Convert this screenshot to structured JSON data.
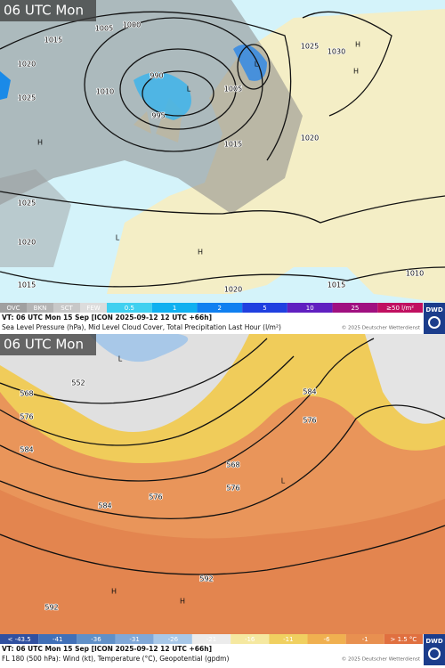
{
  "top": {
    "time_label": "06 UTC Mon",
    "contour_labels": [
      "1020",
      "1015",
      "1010",
      "1005",
      "1000",
      "995",
      "990",
      "1005",
      "1025",
      "1030",
      "1020",
      "1015",
      "1025",
      "1025",
      "1020",
      "1015",
      "1020",
      "1015",
      "1010",
      "H",
      "L",
      "L",
      "H",
      "H",
      "L",
      "H"
    ],
    "legend": [
      "OVC",
      "BKN",
      "SCT",
      "FEW",
      "0.5",
      "1",
      "2",
      "5",
      "10",
      "25",
      "≥50 l/m²"
    ],
    "caption_line1": "VT: 06 UTC Mon  15 Sep [ICON 2025-09-12 12 UTC +66h]",
    "caption_line2": "Sea Level Pressure (hPa), Mid Level Cloud Cover, Total Precipitation Last Hour (l/m²)",
    "copyright": "© 2025 Deutscher Wetterdienst",
    "logo": "DWD"
  },
  "bottom": {
    "time_label": "06 UTC Mon",
    "contour_labels": [
      "552",
      "568",
      "576",
      "584",
      "576",
      "584",
      "568",
      "576",
      "584",
      "576",
      "592",
      "592",
      "L",
      "L",
      "H",
      "H"
    ],
    "legend": [
      "< -43.5",
      "-41",
      "-36",
      "-31",
      "-26",
      "-21",
      "-16",
      "-11",
      "-6",
      "-1",
      "> 1.5 °C"
    ],
    "caption_line1": "VT: 06 UTC Mon  15 Sep [ICON 2025-09-12 12 UTC +66h]",
    "caption_line2": "FL 180 (500 hPa): Wind (kt), Temperature (°C), Geopotential (gpdm)",
    "copyright": "© 2025 Deutscher Wetterdienst",
    "logo": "DWD"
  }
}
